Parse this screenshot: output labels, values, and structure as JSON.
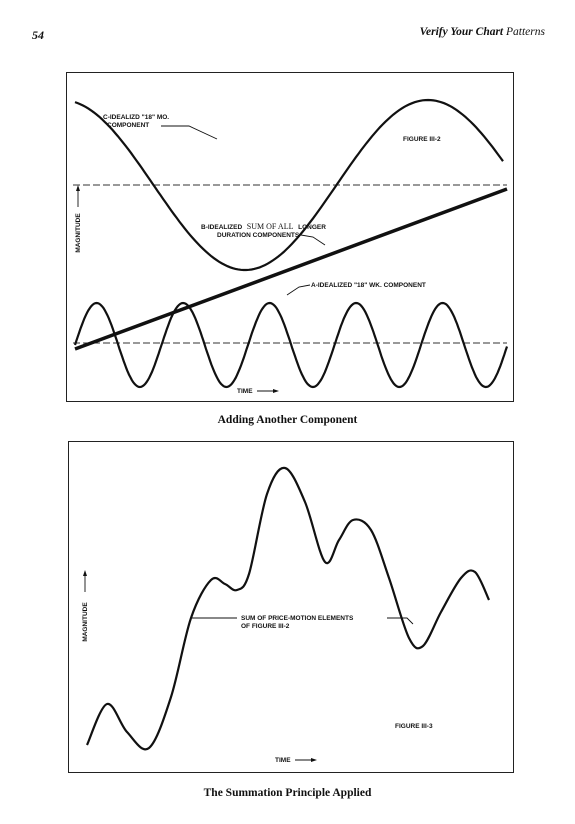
{
  "page": {
    "number": "54",
    "running_head_bold": "Verify Your Chart",
    "running_head_rest": "Patterns"
  },
  "figure1": {
    "figure_label": "FIGURE III-2",
    "ylabel": "MAGNITUDE",
    "xlabel": "TIME",
    "component_c": [
      "C-IDEALIZD \"18\" MO.",
      "COMPONENT"
    ],
    "component_b_prefix": "B-IDEALIZED",
    "component_b_mid": "SUM OF ALL",
    "component_b_suffix": "LONGER",
    "component_b_line2": "DURATION COMPONENTS",
    "component_a": "A-IDEALIZED \"18\" WK. COMPONENT",
    "caption": "Adding Another Component"
  },
  "figure2": {
    "figure_label": "FIGURE III-3",
    "ylabel": "MAGNITUDE",
    "xlabel": "TIME",
    "sum_label": [
      "SUM OF PRICE-MOTION ELEMENTS",
      "OF FIGURE III-2"
    ],
    "caption": "The Summation Principle Applied"
  },
  "chart_data": [
    {
      "type": "line",
      "title": "FIGURE III-2",
      "xlabel": "TIME",
      "ylabel": "MAGNITUDE",
      "grid": false,
      "series": [
        {
          "name": "C-IDEALIZD \"18\" MO. COMPONENT",
          "shape": "sine",
          "cycles": 1,
          "color": "#111111"
        },
        {
          "name": "B-IDEALIZED SUM OF ALL LONGER DURATION COMPONENTS",
          "shape": "straight-rising",
          "color": "#111111"
        },
        {
          "name": "A-IDEALIZED \"18\" WK. COMPONENT",
          "shape": "sine",
          "cycles": 5.5,
          "color": "#111111"
        }
      ]
    },
    {
      "type": "line",
      "title": "FIGURE III-3",
      "xlabel": "TIME",
      "ylabel": "MAGNITUDE",
      "grid": false,
      "series": [
        {
          "name": "SUM OF PRICE-MOTION ELEMENTS OF FIGURE III-2",
          "shape": "sum-of-components",
          "color": "#111111"
        }
      ]
    }
  ]
}
